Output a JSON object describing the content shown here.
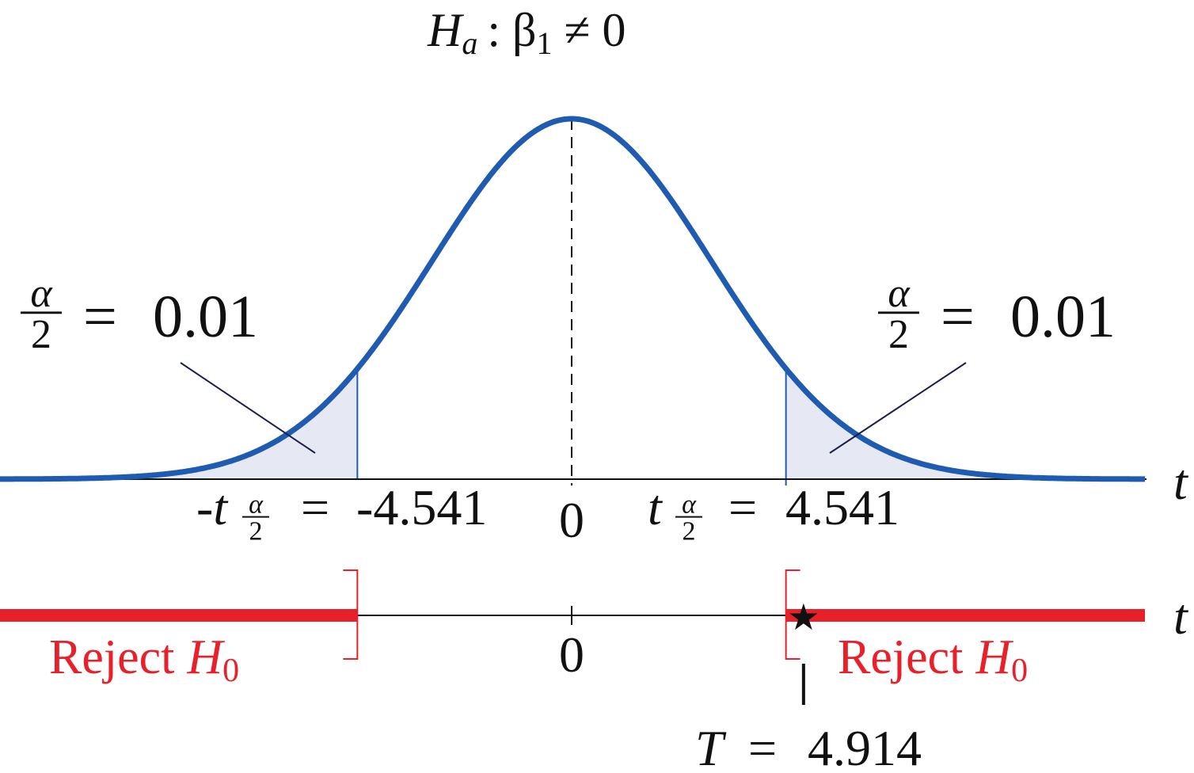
{
  "hypothesis": {
    "lhs": "H",
    "lhs_sub": "a",
    "rhs": ": β",
    "rhs_sub": "1",
    "tail": " ≠ 0"
  },
  "tail_area": {
    "numerator": "α",
    "denominator": "2",
    "equals": "=",
    "value": 0.01
  },
  "critical": {
    "left_prefix": "-t",
    "right_prefix": "t",
    "sub_num": "α",
    "sub_den": "2",
    "equals": "=",
    "left_value": -4.541,
    "right_value": 4.541
  },
  "axis": {
    "label": "t",
    "center": 0
  },
  "reject_label": {
    "text": "Reject",
    "var": "H",
    "sub": "0"
  },
  "statistic": {
    "label": "T",
    "equals": "=",
    "value": 4.914
  }
}
